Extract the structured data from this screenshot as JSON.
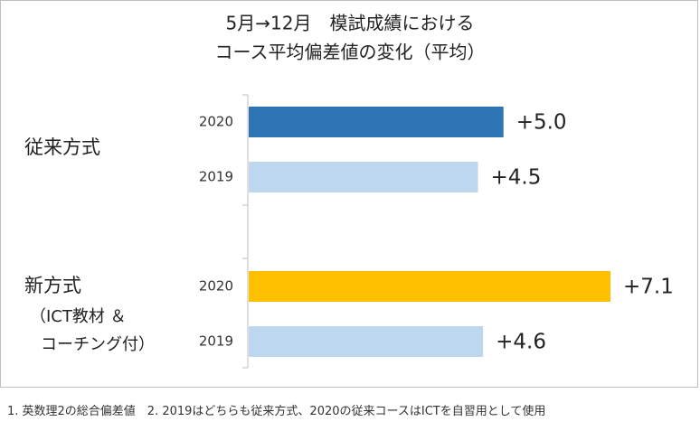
{
  "chart_data": {
    "type": "bar",
    "orientation": "horizontal",
    "title_lines": [
      "5月→12月　模試成績における",
      "コース平均偏差値の変化（平均）"
    ],
    "groups": [
      {
        "label_lines": [
          "従来方式"
        ],
        "bars": [
          {
            "year": "2020",
            "value": 5.0,
            "value_label": "+5.0",
            "color": "#2e75b6"
          },
          {
            "year": "2019",
            "value": 4.5,
            "value_label": "+4.5",
            "color": "#bdd7ee"
          }
        ]
      },
      {
        "label_lines": [
          "新方式",
          "（ICT教材 ＆",
          "コーチング付）"
        ],
        "bars": [
          {
            "year": "2020",
            "value": 7.1,
            "value_label": "+7.1",
            "color": "#ffc000"
          },
          {
            "year": "2019",
            "value": 4.6,
            "value_label": "+4.6",
            "color": "#bdd7ee"
          }
        ]
      }
    ],
    "xlim": [
      0,
      7.1
    ],
    "grid": false,
    "legend": "none"
  },
  "footnote": "1. 英数理2の総合偏差値　2. 2019はどちらも従来方式、2020の従来コースはICTを自習用として使用"
}
